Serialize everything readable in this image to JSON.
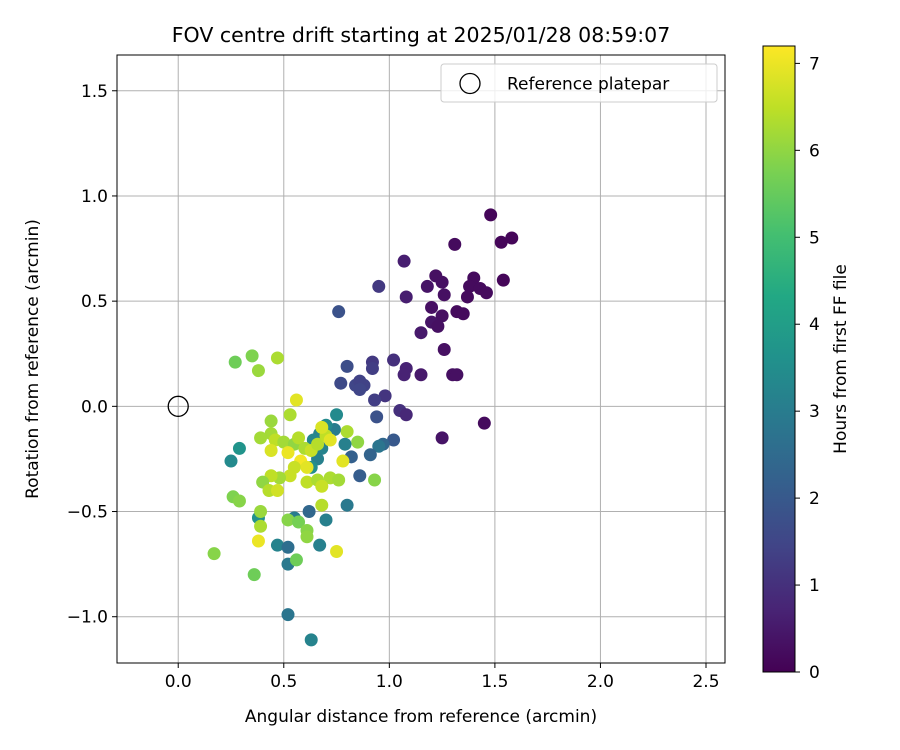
{
  "chart_data": {
    "type": "scatter",
    "title": "FOV centre drift starting at 2025/01/28 08:59:07",
    "xlabel": "Angular distance from reference (arcmin)",
    "ylabel": "Rotation from reference (arcmin)",
    "xlim": [
      -0.29,
      2.59
    ],
    "ylim": [
      -1.22,
      1.67
    ],
    "xticks": [
      0.0,
      0.5,
      1.0,
      1.5,
      2.0,
      2.5
    ],
    "xtick_labels": [
      "0.0",
      "0.5",
      "1.0",
      "1.5",
      "2.0",
      "2.5"
    ],
    "yticks": [
      -1.0,
      -0.5,
      0.0,
      0.5,
      1.0,
      1.5
    ],
    "ytick_labels": [
      "−1.0",
      "−0.5",
      "0.0",
      "0.5",
      "1.0",
      "1.5"
    ],
    "grid": true,
    "legend": {
      "position": "top-right",
      "entries": [
        "Reference platepar"
      ]
    },
    "reference_point": {
      "x": 0.0,
      "y": 0.0,
      "label": "Reference platepar"
    },
    "colorbar": {
      "label": "Hours from first FF file",
      "range": [
        0,
        7.2
      ],
      "colormap": "viridis",
      "ticks": [
        0,
        1,
        2,
        3,
        4,
        5,
        6,
        7
      ],
      "tick_labels": [
        "0",
        "1",
        "2",
        "3",
        "4",
        "5",
        "6",
        "7"
      ]
    },
    "points": [
      {
        "x": 1.48,
        "y": 0.91,
        "t": 0.1
      },
      {
        "x": 1.58,
        "y": 0.8,
        "t": 0.1
      },
      {
        "x": 1.53,
        "y": 0.78,
        "t": 0.1
      },
      {
        "x": 1.31,
        "y": 0.77,
        "t": 0.2
      },
      {
        "x": 1.07,
        "y": 0.69,
        "t": 0.6
      },
      {
        "x": 1.22,
        "y": 0.62,
        "t": 0.3
      },
      {
        "x": 1.25,
        "y": 0.59,
        "t": 0.3
      },
      {
        "x": 1.4,
        "y": 0.61,
        "t": 0.2
      },
      {
        "x": 1.54,
        "y": 0.6,
        "t": 0.1
      },
      {
        "x": 1.38,
        "y": 0.57,
        "t": 0.2
      },
      {
        "x": 1.43,
        "y": 0.56,
        "t": 0.2
      },
      {
        "x": 1.46,
        "y": 0.54,
        "t": 0.2
      },
      {
        "x": 1.18,
        "y": 0.57,
        "t": 0.4
      },
      {
        "x": 0.95,
        "y": 0.57,
        "t": 1.2
      },
      {
        "x": 1.08,
        "y": 0.52,
        "t": 0.6
      },
      {
        "x": 1.26,
        "y": 0.53,
        "t": 0.3
      },
      {
        "x": 1.37,
        "y": 0.52,
        "t": 0.2
      },
      {
        "x": 1.2,
        "y": 0.47,
        "t": 0.3
      },
      {
        "x": 1.32,
        "y": 0.45,
        "t": 0.2
      },
      {
        "x": 1.35,
        "y": 0.44,
        "t": 0.2
      },
      {
        "x": 1.25,
        "y": 0.43,
        "t": 0.3
      },
      {
        "x": 1.2,
        "y": 0.4,
        "t": 0.4
      },
      {
        "x": 1.23,
        "y": 0.38,
        "t": 0.3
      },
      {
        "x": 0.76,
        "y": 0.45,
        "t": 1.8
      },
      {
        "x": 1.15,
        "y": 0.35,
        "t": 0.5
      },
      {
        "x": 1.26,
        "y": 0.27,
        "t": 0.3
      },
      {
        "x": 1.02,
        "y": 0.22,
        "t": 1.0
      },
      {
        "x": 0.92,
        "y": 0.21,
        "t": 1.2
      },
      {
        "x": 1.08,
        "y": 0.18,
        "t": 0.7
      },
      {
        "x": 1.07,
        "y": 0.15,
        "t": 0.7
      },
      {
        "x": 1.15,
        "y": 0.15,
        "t": 0.5
      },
      {
        "x": 1.3,
        "y": 0.15,
        "t": 0.3
      },
      {
        "x": 1.32,
        "y": 0.15,
        "t": 0.3
      },
      {
        "x": 0.8,
        "y": 0.19,
        "t": 1.7
      },
      {
        "x": 0.92,
        "y": 0.18,
        "t": 1.3
      },
      {
        "x": 0.77,
        "y": 0.11,
        "t": 1.6
      },
      {
        "x": 0.84,
        "y": 0.1,
        "t": 1.5
      },
      {
        "x": 0.86,
        "y": 0.12,
        "t": 1.4
      },
      {
        "x": 0.88,
        "y": 0.1,
        "t": 1.4
      },
      {
        "x": 0.86,
        "y": 0.08,
        "t": 1.5
      },
      {
        "x": 0.98,
        "y": 0.05,
        "t": 1.1
      },
      {
        "x": 0.93,
        "y": 0.03,
        "t": 1.3
      },
      {
        "x": 1.05,
        "y": -0.02,
        "t": 1.0
      },
      {
        "x": 1.08,
        "y": -0.04,
        "t": 0.8
      },
      {
        "x": 1.25,
        "y": -0.15,
        "t": 0.4
      },
      {
        "x": 1.45,
        "y": -0.08,
        "t": 0.2
      },
      {
        "x": 0.94,
        "y": -0.05,
        "t": 1.8
      },
      {
        "x": 0.75,
        "y": -0.04,
        "t": 3.4
      },
      {
        "x": 1.02,
        "y": -0.16,
        "t": 2.0
      },
      {
        "x": 0.97,
        "y": -0.18,
        "t": 2.4
      },
      {
        "x": 0.95,
        "y": -0.19,
        "t": 2.8
      },
      {
        "x": 0.91,
        "y": -0.23,
        "t": 2.3
      },
      {
        "x": 0.82,
        "y": -0.24,
        "t": 2.2
      },
      {
        "x": 0.86,
        "y": -0.33,
        "t": 2.1
      },
      {
        "x": 0.8,
        "y": -0.47,
        "t": 2.9
      },
      {
        "x": 0.8,
        "y": -0.12,
        "t": 6.3
      },
      {
        "x": 0.85,
        "y": -0.17,
        "t": 6.0
      },
      {
        "x": 0.93,
        "y": -0.35,
        "t": 5.9
      },
      {
        "x": 0.79,
        "y": -0.18,
        "t": 3.1
      },
      {
        "x": 0.74,
        "y": -0.11,
        "t": 3.0
      },
      {
        "x": 0.7,
        "y": -0.09,
        "t": 3.4
      },
      {
        "x": 0.67,
        "y": -0.13,
        "t": 3.2
      },
      {
        "x": 0.64,
        "y": -0.16,
        "t": 3.3
      },
      {
        "x": 0.68,
        "y": -0.2,
        "t": 3.2
      },
      {
        "x": 0.66,
        "y": -0.25,
        "t": 3.1
      },
      {
        "x": 0.63,
        "y": -0.29,
        "t": 3.5
      },
      {
        "x": 0.62,
        "y": -0.5,
        "t": 2.4
      },
      {
        "x": 0.55,
        "y": -0.53,
        "t": 3.0
      },
      {
        "x": 0.67,
        "y": -0.66,
        "t": 3.1
      },
      {
        "x": 0.47,
        "y": -0.66,
        "t": 3.2
      },
      {
        "x": 0.52,
        "y": -0.67,
        "t": 2.6
      },
      {
        "x": 0.52,
        "y": -0.75,
        "t": 2.9
      },
      {
        "x": 0.52,
        "y": -0.99,
        "t": 2.8
      },
      {
        "x": 0.63,
        "y": -1.11,
        "t": 3.2
      },
      {
        "x": 0.7,
        "y": -0.54,
        "t": 3.1
      },
      {
        "x": 0.25,
        "y": -0.26,
        "t": 3.4
      },
      {
        "x": 0.29,
        "y": -0.2,
        "t": 3.7
      },
      {
        "x": 0.38,
        "y": -0.53,
        "t": 3.6
      },
      {
        "x": 0.27,
        "y": 0.21,
        "t": 5.6
      },
      {
        "x": 0.35,
        "y": 0.24,
        "t": 5.8
      },
      {
        "x": 0.38,
        "y": 0.17,
        "t": 6.1
      },
      {
        "x": 0.47,
        "y": 0.23,
        "t": 6.3
      },
      {
        "x": 0.44,
        "y": -0.07,
        "t": 6.1
      },
      {
        "x": 0.53,
        "y": -0.04,
        "t": 6.3
      },
      {
        "x": 0.56,
        "y": 0.03,
        "t": 6.9
      },
      {
        "x": 0.44,
        "y": -0.13,
        "t": 6.2
      },
      {
        "x": 0.39,
        "y": -0.15,
        "t": 6.2
      },
      {
        "x": 0.46,
        "y": -0.16,
        "t": 6.5
      },
      {
        "x": 0.5,
        "y": -0.17,
        "t": 6.2
      },
      {
        "x": 0.55,
        "y": -0.18,
        "t": 6.0
      },
      {
        "x": 0.57,
        "y": -0.15,
        "t": 6.4
      },
      {
        "x": 0.6,
        "y": -0.2,
        "t": 6.3
      },
      {
        "x": 0.63,
        "y": -0.21,
        "t": 6.6
      },
      {
        "x": 0.66,
        "y": -0.18,
        "t": 6.4
      },
      {
        "x": 0.7,
        "y": -0.14,
        "t": 6.5
      },
      {
        "x": 0.68,
        "y": -0.1,
        "t": 6.8
      },
      {
        "x": 0.72,
        "y": -0.16,
        "t": 6.9
      },
      {
        "x": 0.44,
        "y": -0.21,
        "t": 6.8
      },
      {
        "x": 0.52,
        "y": -0.22,
        "t": 7.0
      },
      {
        "x": 0.58,
        "y": -0.26,
        "t": 7.1
      },
      {
        "x": 0.55,
        "y": -0.29,
        "t": 6.6
      },
      {
        "x": 0.61,
        "y": -0.29,
        "t": 6.9
      },
      {
        "x": 0.53,
        "y": -0.33,
        "t": 6.6
      },
      {
        "x": 0.48,
        "y": -0.34,
        "t": 6.2
      },
      {
        "x": 0.44,
        "y": -0.33,
        "t": 6.5
      },
      {
        "x": 0.4,
        "y": -0.36,
        "t": 6.0
      },
      {
        "x": 0.43,
        "y": -0.4,
        "t": 6.4
      },
      {
        "x": 0.47,
        "y": -0.4,
        "t": 6.7
      },
      {
        "x": 0.61,
        "y": -0.36,
        "t": 6.5
      },
      {
        "x": 0.66,
        "y": -0.35,
        "t": 6.3
      },
      {
        "x": 0.72,
        "y": -0.34,
        "t": 6.3
      },
      {
        "x": 0.76,
        "y": -0.35,
        "t": 6.2
      },
      {
        "x": 0.68,
        "y": -0.38,
        "t": 6.6
      },
      {
        "x": 0.78,
        "y": -0.26,
        "t": 6.9
      },
      {
        "x": 0.26,
        "y": -0.43,
        "t": 5.8
      },
      {
        "x": 0.29,
        "y": -0.45,
        "t": 5.9
      },
      {
        "x": 0.39,
        "y": -0.5,
        "t": 6.1
      },
      {
        "x": 0.39,
        "y": -0.57,
        "t": 6.3
      },
      {
        "x": 0.52,
        "y": -0.54,
        "t": 5.9
      },
      {
        "x": 0.57,
        "y": -0.55,
        "t": 5.7
      },
      {
        "x": 0.61,
        "y": -0.59,
        "t": 5.9
      },
      {
        "x": 0.61,
        "y": -0.62,
        "t": 6.0
      },
      {
        "x": 0.68,
        "y": -0.47,
        "t": 6.4
      },
      {
        "x": 0.75,
        "y": -0.69,
        "t": 6.9
      },
      {
        "x": 0.38,
        "y": -0.64,
        "t": 7.0
      },
      {
        "x": 0.56,
        "y": -0.73,
        "t": 5.6
      },
      {
        "x": 0.17,
        "y": -0.7,
        "t": 5.9
      },
      {
        "x": 0.36,
        "y": -0.8,
        "t": 5.6
      }
    ]
  }
}
